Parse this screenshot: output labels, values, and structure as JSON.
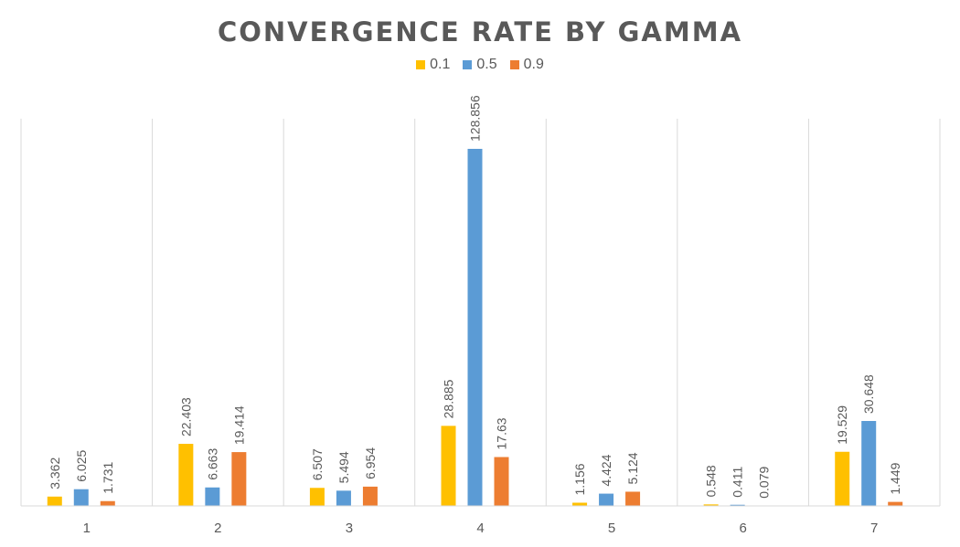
{
  "chart_data": {
    "type": "bar",
    "title": "CONVERGENCE RATE BY GAMMA",
    "xlabel": "",
    "ylabel": "",
    "categories": [
      "1",
      "2",
      "3",
      "4",
      "5",
      "6",
      "7"
    ],
    "series": [
      {
        "name": "0.1",
        "color": "#FFC000",
        "values": [
          3.362,
          22.403,
          6.507,
          28.885,
          1.156,
          0.548,
          19.529
        ]
      },
      {
        "name": "0.5",
        "color": "#5B9BD5",
        "values": [
          6.025,
          6.663,
          5.494,
          128.856,
          4.424,
          0.411,
          30.648
        ]
      },
      {
        "name": "0.9",
        "color": "#ED7D31",
        "values": [
          1.731,
          19.414,
          6.954,
          17.63,
          5.124,
          0.079,
          1.449
        ]
      }
    ],
    "ylim": [
      0,
      140
    ],
    "grid": "vertical category separators",
    "legend": "top-center"
  }
}
